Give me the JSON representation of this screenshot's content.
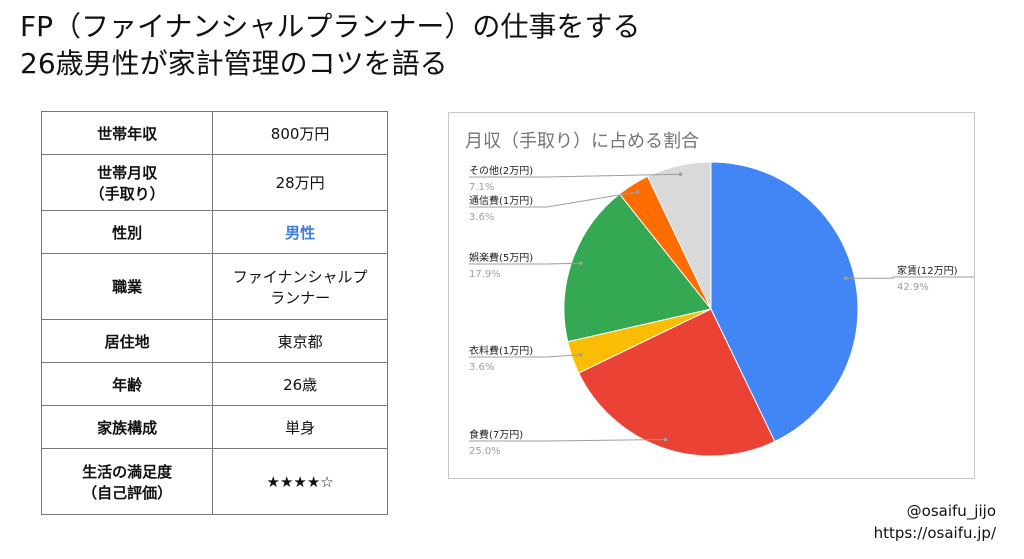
{
  "title": {
    "line1": "FP（ファイナンシャルプランナー）の仕事をする",
    "line2": "26歳男性が家計管理のコツを語る"
  },
  "profile": [
    {
      "key": "世帯年収",
      "value": "800万円"
    },
    {
      "key": "世帯月収\n（手取り）",
      "value": "28万円"
    },
    {
      "key": "性別",
      "value": "男性",
      "highlight": "#3d7ddb"
    },
    {
      "key": "職業",
      "value": "ファイナンシャルプ\nランナー"
    },
    {
      "key": "居住地",
      "value": "東京都"
    },
    {
      "key": "年齢",
      "value": "26歳"
    },
    {
      "key": "家族構成",
      "value": "単身"
    },
    {
      "key": "生活の満足度\n（自己評価）",
      "value": "★★★★☆"
    }
  ],
  "chart_data": {
    "type": "pie",
    "title": "月収（手取り）に占める割合",
    "slices": [
      {
        "label": "家賃(12万円)",
        "value": 42.9,
        "pct_label": "42.9%",
        "color": "#4285f4"
      },
      {
        "label": "食費(7万円)",
        "value": 25.0,
        "pct_label": "25.0%",
        "color": "#ea4335"
      },
      {
        "label": "衣料費(1万円)",
        "value": 3.6,
        "pct_label": "3.6%",
        "color": "#fbbc04"
      },
      {
        "label": "娯楽費(5万円)",
        "value": 17.9,
        "pct_label": "17.9%",
        "color": "#34a853"
      },
      {
        "label": "通信費(1万円)",
        "value": 3.6,
        "pct_label": "3.6%",
        "color": "#ff6d01"
      },
      {
        "label": "その他(2万円)",
        "value": 7.1,
        "pct_label": "7.1%",
        "color": "#d9d9d9"
      }
    ]
  },
  "footer": {
    "handle": "@osaifu_jijo",
    "url": "https://osaifu.jp/"
  }
}
